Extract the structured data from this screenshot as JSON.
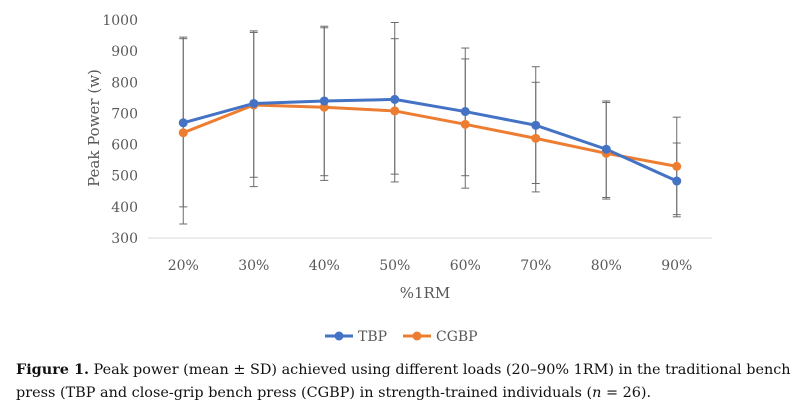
{
  "chart_data": {
    "type": "line",
    "title": "",
    "xlabel": "%1RM",
    "ylabel": "Peak Power (w)",
    "categories": [
      "20%",
      "30%",
      "40%",
      "50%",
      "60%",
      "70%",
      "80%",
      "90%"
    ],
    "ylim": [
      300,
      1000
    ],
    "yticks": [
      "300",
      "400",
      "500",
      "600",
      "700",
      "800",
      "900",
      "1000"
    ],
    "grid": false,
    "legend_position": "bottom",
    "series": [
      {
        "name": "TBP",
        "color": "#4472C4",
        "values": [
          670,
          732,
          740,
          745,
          706,
          662,
          585,
          483
        ],
        "error_low": [
          400,
          495,
          500,
          505,
          500,
          475,
          430,
          375
        ],
        "error_high": [
          945,
          965,
          975,
          992,
          910,
          850,
          740,
          688
        ]
      },
      {
        "name": "CGBP",
        "color": "#ED7D31",
        "values": [
          638,
          727,
          720,
          708,
          665,
          620,
          572,
          530
        ],
        "error_low": [
          345,
          465,
          485,
          480,
          460,
          448,
          425,
          368
        ],
        "error_high": [
          940,
          960,
          980,
          940,
          875,
          800,
          735,
          605
        ]
      }
    ]
  },
  "caption": {
    "label": "Figure 1.",
    "part1": " Peak power (mean ± SD) achieved using different loads (20–90% 1RM) in the traditional bench press (TBP and close-grip bench press (CGBP) in strength-trained individuals (",
    "n_symbol": "n",
    "part2": " = 26)."
  }
}
